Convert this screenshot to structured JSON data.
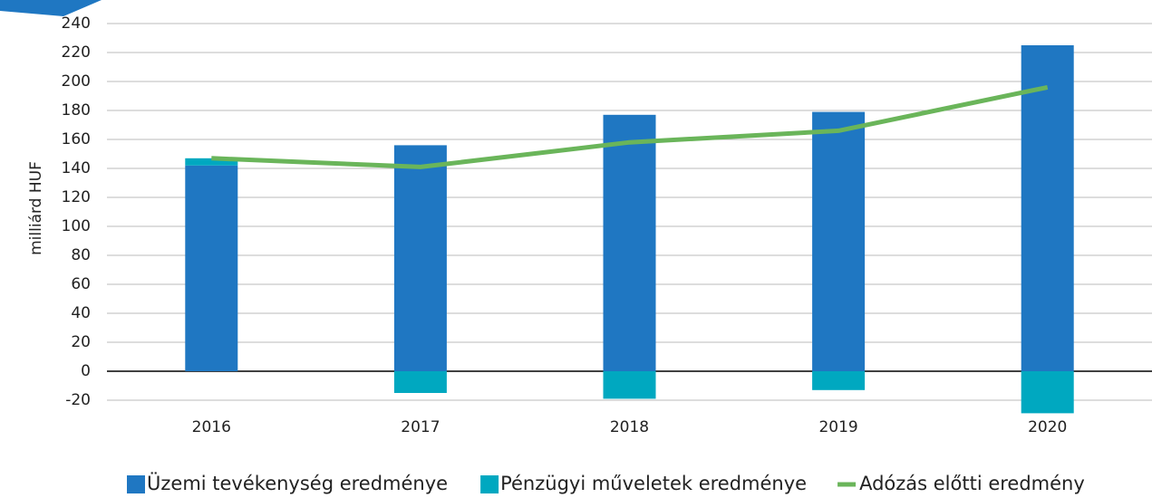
{
  "chart_data": {
    "type": "bar",
    "y_label": "milliárd HUF",
    "categories": [
      "2016",
      "2017",
      "2018",
      "2019",
      "2020"
    ],
    "series": [
      {
        "name": "Üzemi tevékenység eredménye",
        "color": "#1f77c2",
        "type": "bar",
        "values": [
          142,
          156,
          177,
          179,
          225
        ]
      },
      {
        "name": "Pénzügyi műveletek eredménye",
        "color": "#00a8c0",
        "type": "bar",
        "values": [
          5,
          -15,
          -19,
          -13,
          -29
        ]
      },
      {
        "name": "Adózás előtti eredmény",
        "color": "#6ab55a",
        "type": "line",
        "values": [
          147,
          141,
          158,
          166,
          196
        ]
      }
    ],
    "stacked": true,
    "ylim": [
      -20,
      240
    ],
    "yticks": [
      -20,
      0,
      20,
      40,
      60,
      80,
      100,
      120,
      140,
      160,
      180,
      200,
      220,
      240
    ],
    "grid": true,
    "legend": "bottom"
  }
}
